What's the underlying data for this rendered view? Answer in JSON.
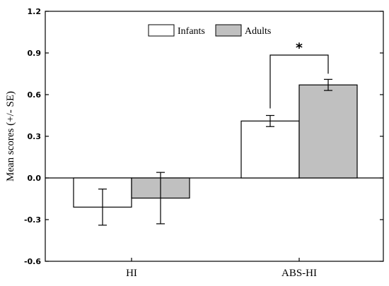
{
  "chart_data": {
    "type": "bar",
    "title": "",
    "xlabel": "",
    "ylabel": "Mean scores (+/- SE)",
    "ylim": [
      -0.6,
      1.2
    ],
    "yticks": [
      "-0.6",
      "-0.3",
      "0.0",
      "0.3",
      "0.6",
      "0.9",
      "1.2"
    ],
    "ytick_values": [
      -0.6,
      -0.3,
      0.0,
      0.3,
      0.6,
      0.9,
      1.2
    ],
    "categories": [
      "HI",
      "ABS-HI"
    ],
    "series": [
      {
        "name": "Infants",
        "color": "#ffffff",
        "values": [
          -0.21,
          0.41
        ],
        "errors": [
          0.13,
          0.04
        ]
      },
      {
        "name": "Adults",
        "color": "#c0c0c0",
        "values": [
          -0.145,
          0.67
        ],
        "errors": [
          0.185,
          0.04
        ]
      }
    ],
    "zero_line": true,
    "grid": false,
    "legend": "top-center",
    "annotation": {
      "text": "*",
      "between": [
        "Infants",
        "Adults"
      ],
      "category": "ABS-HI"
    }
  }
}
